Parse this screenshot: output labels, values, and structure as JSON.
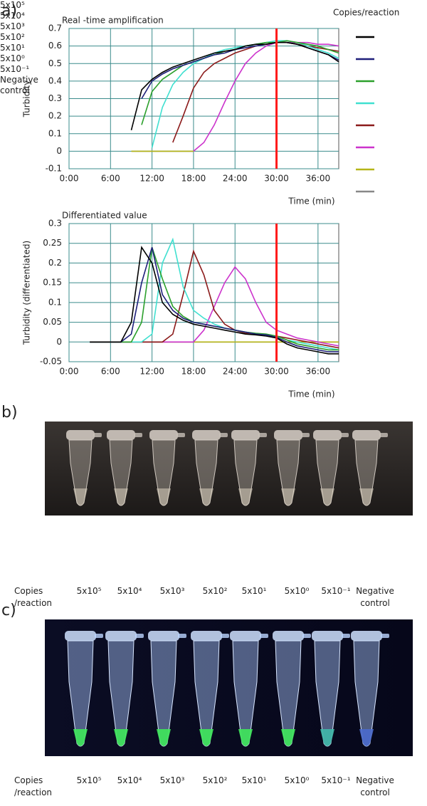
{
  "panel_labels": [
    "a)",
    "b)",
    "c)"
  ],
  "chart_data": [
    {
      "type": "line",
      "title": "Real -time amplification",
      "xlabel": "Time (min)",
      "ylabel": "Turbidity",
      "legend": "right",
      "legend_title": "Copies/reaction",
      "xlim": [
        0,
        39
      ],
      "ylim": [
        -0.1,
        0.7
      ],
      "xticks": [
        {
          "value": 0,
          "label": "0:00"
        },
        {
          "value": 6,
          "label": "6:00"
        },
        {
          "value": 12,
          "label": "12:00"
        },
        {
          "value": 18,
          "label": "18:00"
        },
        {
          "value": 24,
          "label": "24:00"
        },
        {
          "value": 30,
          "label": "30:00"
        },
        {
          "value": 36,
          "label": "36:00"
        }
      ],
      "yticks": [
        -0.1,
        0,
        0.1,
        0.2,
        0.3,
        0.4,
        0.5,
        0.6,
        0.7
      ],
      "grid": true,
      "vline": 30,
      "vline_color": "#ff1a1a",
      "x": [
        0,
        1.5,
        3,
        4.5,
        6,
        7.5,
        9,
        10.5,
        12,
        13.5,
        15,
        16.5,
        18,
        19.5,
        21,
        22.5,
        24,
        25.5,
        27,
        28.5,
        30,
        31.5,
        33,
        34.5,
        36,
        37.5,
        39
      ],
      "series": [
        {
          "name": "5x10⁵",
          "color": "#000000",
          "values": [
            null,
            null,
            null,
            null,
            null,
            null,
            0.12,
            0.35,
            0.41,
            0.45,
            0.48,
            0.5,
            0.52,
            0.54,
            0.56,
            0.57,
            0.58,
            0.6,
            0.61,
            0.61,
            0.62,
            0.62,
            0.61,
            0.59,
            0.57,
            0.55,
            0.51
          ]
        },
        {
          "name": "5x10⁴",
          "color": "#1f1f7a",
          "values": [
            null,
            null,
            null,
            null,
            null,
            null,
            null,
            0.3,
            0.4,
            0.44,
            0.47,
            0.49,
            0.51,
            0.53,
            0.55,
            0.56,
            0.58,
            0.59,
            0.6,
            0.61,
            0.62,
            0.62,
            0.61,
            0.59,
            0.57,
            0.55,
            0.52
          ]
        },
        {
          "name": "5x10³",
          "color": "#2ca02c",
          "values": [
            null,
            null,
            null,
            null,
            null,
            null,
            null,
            0.15,
            0.34,
            0.41,
            0.45,
            0.49,
            0.51,
            0.53,
            0.55,
            0.57,
            0.58,
            0.6,
            0.61,
            0.62,
            0.62,
            0.63,
            0.62,
            0.61,
            0.6,
            0.58,
            0.56
          ]
        },
        {
          "name": "5x10²",
          "color": "#40e0d0",
          "values": [
            null,
            null,
            null,
            null,
            null,
            null,
            null,
            null,
            0.02,
            0.25,
            0.38,
            0.45,
            0.5,
            0.53,
            0.56,
            0.58,
            0.59,
            0.6,
            0.61,
            0.62,
            0.63,
            0.63,
            0.62,
            0.6,
            0.58,
            0.56,
            0.53
          ]
        },
        {
          "name": "5x10¹",
          "color": "#8b1a1a",
          "values": [
            null,
            null,
            null,
            null,
            null,
            null,
            null,
            null,
            null,
            null,
            0.05,
            0.2,
            0.36,
            0.45,
            0.5,
            0.53,
            0.56,
            0.58,
            0.6,
            0.61,
            0.62,
            0.62,
            0.61,
            0.6,
            0.59,
            0.58,
            0.57
          ]
        },
        {
          "name": "5x10⁰",
          "color": "#cc33cc",
          "values": [
            null,
            null,
            null,
            null,
            null,
            null,
            null,
            null,
            null,
            null,
            null,
            null,
            0,
            0.05,
            0.15,
            0.28,
            0.4,
            0.5,
            0.56,
            0.6,
            0.62,
            0.62,
            0.62,
            0.62,
            0.61,
            0.61,
            0.6
          ]
        },
        {
          "name": "5x10⁻¹",
          "color": "#b5b518",
          "values": [
            null,
            null,
            null,
            null,
            null,
            null,
            0,
            0,
            0,
            0,
            0,
            0,
            0,
            null,
            null,
            null,
            null,
            null,
            null,
            null,
            null,
            null,
            null,
            null,
            null,
            null,
            null
          ]
        },
        {
          "name": "Negative control",
          "color": "#888888",
          "values": [
            null,
            null,
            null,
            null,
            null,
            null,
            0,
            0,
            0,
            0,
            0,
            0,
            0,
            null,
            null,
            null,
            null,
            null,
            null,
            null,
            null,
            null,
            null,
            null,
            null,
            null,
            null
          ]
        }
      ]
    },
    {
      "type": "line",
      "title": "Differentiated value",
      "xlabel": "Time (min)",
      "ylabel": "Turbidity  (differentiated)",
      "xlim": [
        0,
        39
      ],
      "ylim": [
        -0.05,
        0.3
      ],
      "xticks": [
        {
          "value": 0,
          "label": "0:00"
        },
        {
          "value": 6,
          "label": "6:00"
        },
        {
          "value": 12,
          "label": "12:00"
        },
        {
          "value": 18,
          "label": "18:00"
        },
        {
          "value": 24,
          "label": "24:00"
        },
        {
          "value": 30,
          "label": "30:00"
        },
        {
          "value": 36,
          "label": "36:00"
        }
      ],
      "yticks": [
        -0.05,
        0,
        0.05,
        0.1,
        0.15,
        0.2,
        0.25,
        0.3
      ],
      "grid": true,
      "vline": 30,
      "vline_color": "#ff1a1a",
      "x": [
        0,
        1.5,
        3,
        4.5,
        6,
        7.5,
        9,
        10.5,
        12,
        13.5,
        15,
        16.5,
        18,
        19.5,
        21,
        22.5,
        24,
        25.5,
        27,
        28.5,
        30,
        31.5,
        33,
        34.5,
        36,
        37.5,
        39
      ],
      "series": [
        {
          "name": "5x10⁵",
          "color": "#000000",
          "values": [
            null,
            null,
            0,
            0,
            0,
            0,
            0.05,
            0.24,
            0.2,
            0.1,
            0.07,
            0.055,
            0.045,
            0.04,
            0.035,
            0.03,
            0.025,
            0.02,
            0.018,
            0.015,
            0.01,
            -0.005,
            -0.015,
            -0.02,
            -0.025,
            -0.03,
            -0.03
          ]
        },
        {
          "name": "5x10⁴",
          "color": "#1f1f7a",
          "values": [
            null,
            null,
            0,
            0,
            0,
            0,
            0.02,
            0.15,
            0.24,
            0.12,
            0.08,
            0.06,
            0.05,
            0.045,
            0.04,
            0.035,
            0.03,
            0.025,
            0.02,
            0.018,
            0.012,
            0,
            -0.01,
            -0.015,
            -0.02,
            -0.025,
            -0.025
          ]
        },
        {
          "name": "5x10³",
          "color": "#2ca02c",
          "values": [
            null,
            null,
            0,
            0,
            0,
            0,
            0,
            0.05,
            0.24,
            0.16,
            0.09,
            0.065,
            0.05,
            0.045,
            0.04,
            0.035,
            0.03,
            0.025,
            0.022,
            0.02,
            0.015,
            0.005,
            -0.005,
            -0.01,
            -0.015,
            -0.02,
            -0.02
          ]
        },
        {
          "name": "5x10²",
          "color": "#40e0d0",
          "values": [
            null,
            null,
            0,
            0,
            0,
            0,
            0,
            0,
            0.02,
            0.2,
            0.26,
            0.14,
            0.08,
            0.06,
            0.045,
            0.035,
            0.03,
            0.025,
            0.02,
            0.018,
            0.015,
            0.005,
            0,
            -0.005,
            -0.01,
            -0.015,
            -0.02
          ]
        },
        {
          "name": "5x10¹",
          "color": "#8b1a1a",
          "values": [
            null,
            null,
            0,
            0,
            0,
            0,
            0,
            0,
            0,
            0,
            0.02,
            0.12,
            0.23,
            0.17,
            0.08,
            0.045,
            0.03,
            0.022,
            0.02,
            0.018,
            0.015,
            0.01,
            0.005,
            0,
            -0.005,
            -0.01,
            -0.015
          ]
        },
        {
          "name": "5x10⁰",
          "color": "#cc33cc",
          "values": [
            null,
            null,
            0,
            0,
            0,
            0,
            0,
            0,
            0,
            0,
            0,
            0,
            0,
            0.03,
            0.09,
            0.15,
            0.19,
            0.16,
            0.1,
            0.05,
            0.03,
            0.02,
            0.01,
            0.005,
            0,
            -0.005,
            -0.01
          ]
        },
        {
          "name": "5x10⁻¹",
          "color": "#b5b518",
          "values": [
            null,
            null,
            0,
            0,
            0,
            0,
            0,
            0,
            0,
            0,
            0,
            0,
            0,
            0,
            0,
            0,
            0,
            0,
            0,
            0,
            0,
            0,
            0,
            0,
            0,
            0,
            0
          ]
        },
        {
          "name": "Negative control",
          "color": "#888888",
          "values": [
            null,
            null,
            0,
            0,
            0,
            0,
            0,
            0,
            0,
            0,
            0,
            0,
            0,
            0,
            0,
            0,
            0,
            0,
            0,
            0,
            0,
            0,
            0,
            0,
            0,
            0,
            0
          ]
        }
      ]
    }
  ],
  "photos": [
    {
      "caption": [
        "Copies",
        "/reaction"
      ],
      "tubes": [
        "5x10⁵",
        "5x10⁴",
        "5x10³",
        "5x10²",
        "5x10¹",
        "5x10⁰",
        "5x10⁻¹",
        "Negative control"
      ]
    },
    {
      "caption": [
        "Copies",
        "/reaction"
      ],
      "tubes": [
        "5x10⁵",
        "5x10⁴",
        "5x10³",
        "5x10²",
        "5x10¹",
        "5x10⁰",
        "5x10⁻¹",
        "Negative control"
      ]
    }
  ]
}
